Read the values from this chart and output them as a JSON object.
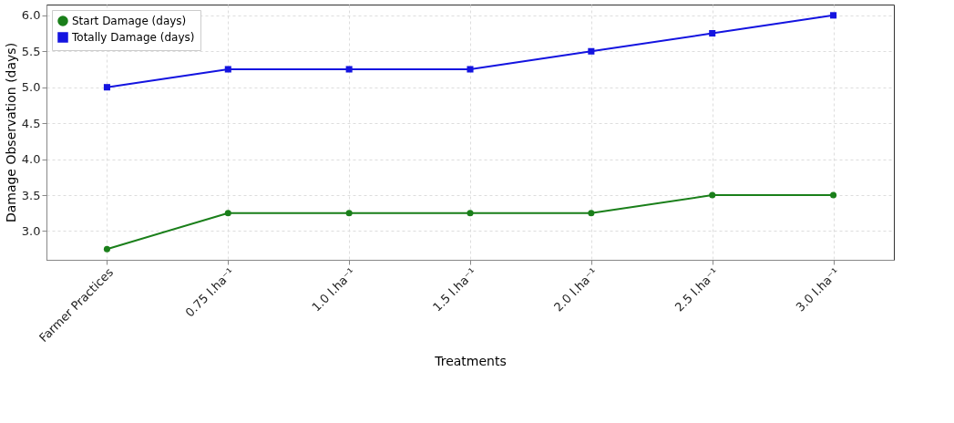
{
  "chart_data": {
    "type": "line",
    "xlabel": "Treatments",
    "ylabel": "Damage Observation (days)",
    "categories": [
      "Farmer Practices",
      "0.75 l.ha⁻¹",
      "1.0 l.ha⁻¹",
      "1.5 l.ha⁻¹",
      "2.0 l.ha⁻¹",
      "2.5 l.ha⁻¹",
      "3.0 l.ha⁻¹"
    ],
    "series": [
      {
        "name": "Start Damage (days)",
        "color": "#1a7f1a",
        "marker": "circle",
        "values": [
          2.75,
          3.25,
          3.25,
          3.25,
          3.25,
          3.5,
          3.5
        ]
      },
      {
        "name": "Totally Damage (days)",
        "color": "#1414e0",
        "marker": "square",
        "values": [
          5.0,
          5.25,
          5.25,
          5.25,
          5.5,
          5.75,
          6.0
        ]
      }
    ],
    "ylim": [
      2.6,
      6.15
    ],
    "yticks": [
      {
        "value": 3,
        "label": "3.0"
      },
      3.5,
      {
        "value": 4,
        "label": "4.0"
      },
      4.5,
      {
        "value": 5,
        "label": "5.0"
      },
      5.5,
      {
        "value": 6,
        "label": "6.0"
      }
    ],
    "grid": true,
    "legend": "top left",
    "line_style": "solid"
  }
}
